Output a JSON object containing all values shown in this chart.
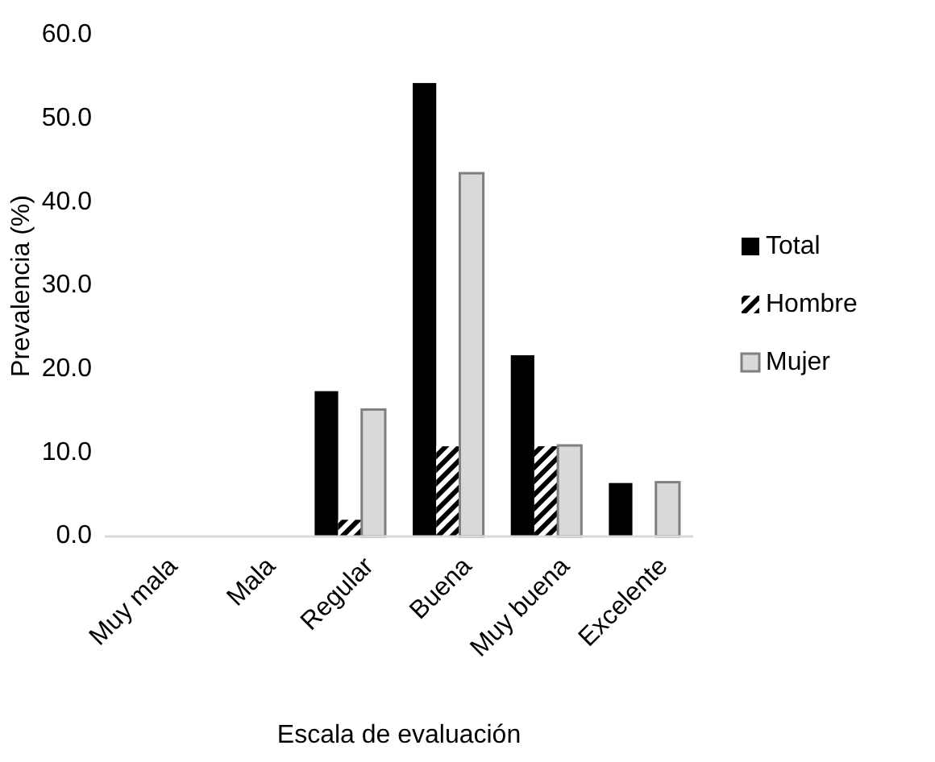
{
  "chart_data": {
    "type": "bar",
    "xlabel": "Escala de evaluación",
    "ylabel": "Prevalencia (%)",
    "categories": [
      "Muy mala",
      "Mala",
      "Regular",
      "Buena",
      "Muy buena",
      "Excelente"
    ],
    "series": [
      {
        "name": "Total",
        "color": "#000000",
        "values": [
          0,
          0,
          17.4,
          54.3,
          21.7,
          6.4
        ]
      },
      {
        "name": "Hombre",
        "color": "#000000",
        "values": [
          0,
          0,
          2.0,
          10.8,
          10.8,
          0
        ]
      },
      {
        "name": "Mujer",
        "color": "#d9d9d9",
        "values": [
          0,
          0,
          15.2,
          43.5,
          10.9,
          6.5
        ]
      }
    ],
    "ylim": [
      0,
      60
    ],
    "yticks": [
      {
        "value": 0,
        "label": "0.0"
      },
      {
        "value": 10,
        "label": "10.0"
      },
      {
        "value": 20,
        "label": "20.0"
      },
      {
        "value": 30,
        "label": "30.0"
      },
      {
        "value": 40,
        "label": "40.0"
      },
      {
        "value": 50,
        "label": "50.0"
      },
      {
        "value": 60,
        "label": "60.0"
      }
    ],
    "legend": "right"
  }
}
